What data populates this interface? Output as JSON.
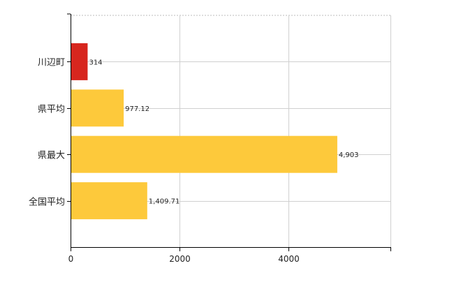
{
  "chart_data": {
    "type": "bar",
    "orientation": "horizontal",
    "categories": [
      "川辺町",
      "県平均",
      "県最大",
      "全国平均"
    ],
    "values": [
      314,
      977.12,
      4903,
      1409.71
    ],
    "value_labels": [
      "314",
      "977.12",
      "4,903",
      "1,409.71"
    ],
    "bar_colors": [
      "#d7261e",
      "#fdc93b",
      "#fdc93b",
      "#fdc93b"
    ],
    "x_ticks": [
      0,
      2000,
      4000
    ],
    "x_tick_labels": [
      "0",
      "2000",
      "4000"
    ],
    "xlim": [
      0,
      5880
    ],
    "grid": true,
    "legend": false
  }
}
